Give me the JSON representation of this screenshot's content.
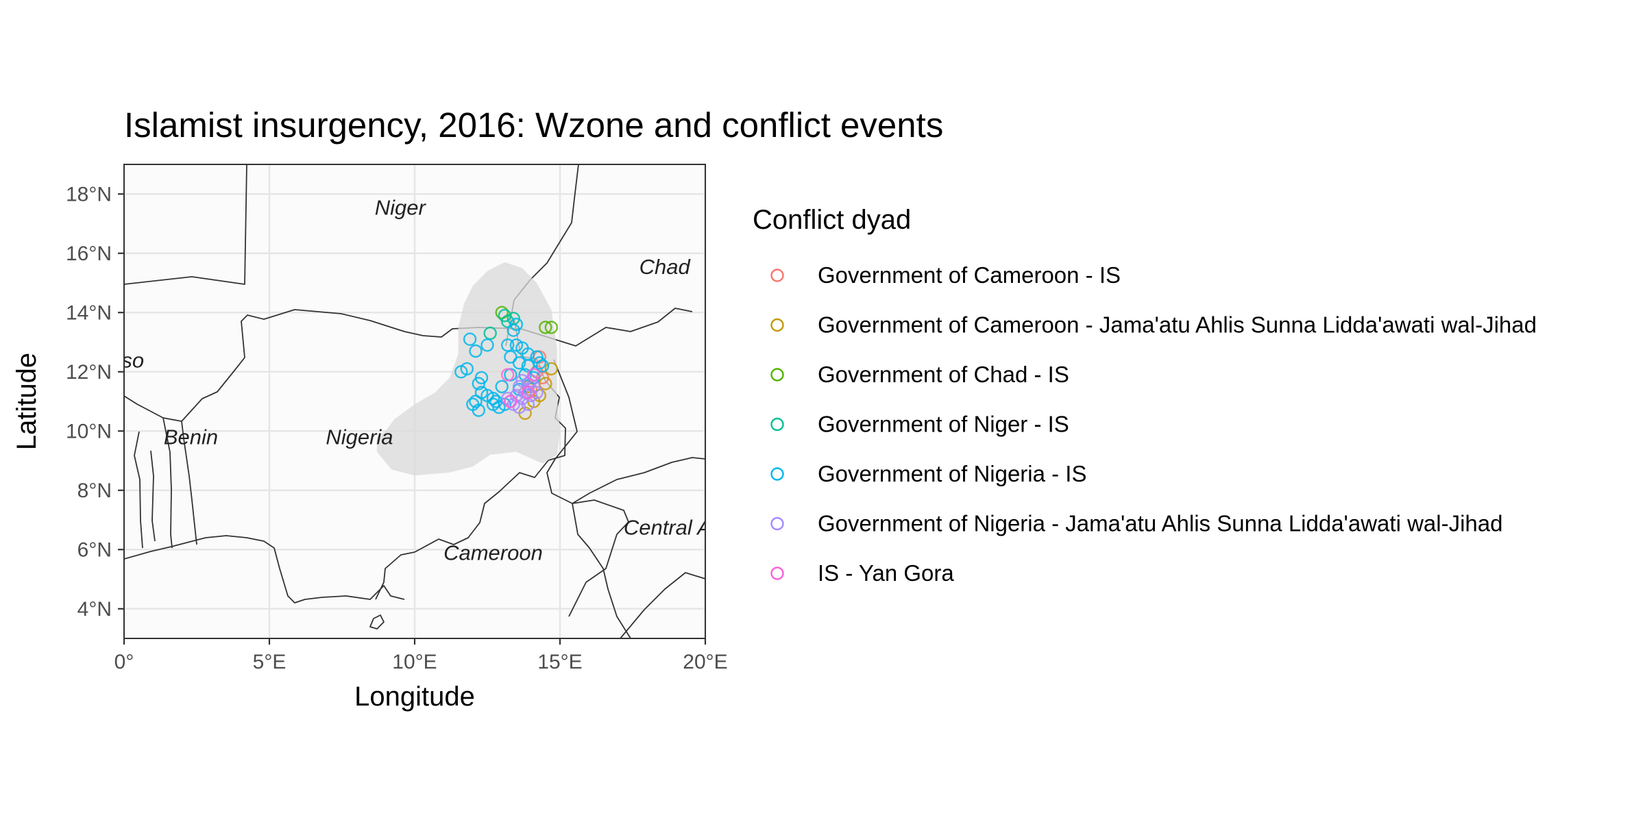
{
  "title": "Islamist insurgency, 2016: Wzone and conflict events",
  "xlabel": "Longitude",
  "ylabel": "Latitude",
  "x_ticks": [
    {
      "value": 0,
      "label": "0°"
    },
    {
      "value": 5,
      "label": "5°E"
    },
    {
      "value": 10,
      "label": "10°E"
    },
    {
      "value": 15,
      "label": "15°E"
    },
    {
      "value": 20,
      "label": "20°E"
    }
  ],
  "y_ticks": [
    {
      "value": 4,
      "label": "4°N"
    },
    {
      "value": 6,
      "label": "6°N"
    },
    {
      "value": 8,
      "label": "8°N"
    },
    {
      "value": 10,
      "label": "10°N"
    },
    {
      "value": 12,
      "label": "12°N"
    },
    {
      "value": 14,
      "label": "14°N"
    },
    {
      "value": 16,
      "label": "16°N"
    },
    {
      "value": 18,
      "label": "18°N"
    }
  ],
  "country_labels": [
    {
      "text": "Niger",
      "lon": 9.5,
      "lat": 17.3
    },
    {
      "text": "Chad",
      "lon": 18.6,
      "lat": 15.3
    },
    {
      "text": "so",
      "lon": 0.3,
      "lat": 12.15
    },
    {
      "text": "Benin",
      "lon": 2.3,
      "lat": 9.55
    },
    {
      "text": "Nigeria",
      "lon": 8.1,
      "lat": 9.55
    },
    {
      "text": "Cameroon",
      "lon": 12.7,
      "lat": 5.65
    },
    {
      "text": "Central A",
      "lon": 18.7,
      "lat": 6.5
    }
  ],
  "legend": {
    "title": "Conflict dyad",
    "items": [
      {
        "label": "Government of Cameroon - IS",
        "color": "#F8766D"
      },
      {
        "label": "Government of Cameroon - Jama'atu Ahlis Sunna Lidda'awati wal-Jihad",
        "color": "#C49A00"
      },
      {
        "label": "Government of Chad - IS",
        "color": "#53B400"
      },
      {
        "label": "Government of Niger - IS",
        "color": "#00C094"
      },
      {
        "label": "Government of Nigeria - IS",
        "color": "#00B6EB"
      },
      {
        "label": "Government of Nigeria - Jama'atu Ahlis Sunna Lidda'awati wal-Jihad",
        "color": "#A58AFF"
      },
      {
        "label": "IS - Yan Gora",
        "color": "#FB61D7"
      }
    ]
  },
  "chart_data": {
    "type": "scatter",
    "xlim": [
      0,
      20
    ],
    "ylim": [
      3,
      19
    ],
    "grid": true,
    "legend_position": "right",
    "wzone_polygon": [
      [
        9.0,
        10.0
      ],
      [
        9.3,
        10.4
      ],
      [
        10.0,
        10.9
      ],
      [
        10.7,
        11.3
      ],
      [
        11.2,
        11.8
      ],
      [
        11.5,
        12.6
      ],
      [
        11.5,
        13.5
      ],
      [
        11.7,
        14.3
      ],
      [
        12.0,
        14.9
      ],
      [
        12.5,
        15.4
      ],
      [
        13.1,
        15.7
      ],
      [
        13.7,
        15.5
      ],
      [
        14.2,
        15.0
      ],
      [
        14.7,
        14.1
      ],
      [
        14.9,
        12.8
      ],
      [
        14.9,
        11.2
      ],
      [
        15.0,
        10.0
      ],
      [
        14.9,
        9.2
      ],
      [
        14.4,
        8.9
      ],
      [
        13.5,
        9.3
      ],
      [
        12.6,
        9.2
      ],
      [
        12.0,
        8.8
      ],
      [
        11.2,
        8.6
      ],
      [
        10.0,
        8.5
      ],
      [
        9.2,
        8.7
      ],
      [
        8.7,
        9.3
      ],
      [
        8.7,
        9.8
      ],
      [
        9.0,
        10.0
      ]
    ],
    "series": [
      {
        "name": "Government of Cameroon - IS",
        "points": [
          [
            14.3,
            12.5
          ],
          [
            14.4,
            11.8
          ],
          [
            14.0,
            11.4
          ],
          [
            14.2,
            12.0
          ]
        ]
      },
      {
        "name": "Government of Cameroon - Jama'atu Ahlis Sunna Lidda'awati wal-Jihad",
        "points": [
          [
            14.7,
            12.1
          ],
          [
            13.8,
            10.6
          ],
          [
            14.1,
            11.0
          ],
          [
            14.3,
            11.2
          ],
          [
            13.9,
            11.5
          ],
          [
            14.5,
            11.6
          ]
        ]
      },
      {
        "name": "Government of Chad - IS",
        "points": [
          [
            14.5,
            13.5
          ],
          [
            14.7,
            13.5
          ],
          [
            13.0,
            14.0
          ]
        ]
      },
      {
        "name": "Government of Niger - IS",
        "points": [
          [
            12.6,
            13.3
          ],
          [
            13.2,
            13.7
          ],
          [
            13.4,
            13.8
          ],
          [
            13.1,
            13.9
          ]
        ]
      },
      {
        "name": "Government of Nigeria - IS",
        "points": [
          [
            11.6,
            12.0
          ],
          [
            11.8,
            12.1
          ],
          [
            11.9,
            13.1
          ],
          [
            12.1,
            12.7
          ],
          [
            12.5,
            12.9
          ],
          [
            12.2,
            11.6
          ],
          [
            12.3,
            11.3
          ],
          [
            12.1,
            11.0
          ],
          [
            12.2,
            10.7
          ],
          [
            12.7,
            11.1
          ],
          [
            12.9,
            10.8
          ],
          [
            13.0,
            11.5
          ],
          [
            13.2,
            12.9
          ],
          [
            13.3,
            12.5
          ],
          [
            13.4,
            13.4
          ],
          [
            13.5,
            13.6
          ],
          [
            13.6,
            12.3
          ],
          [
            13.7,
            12.8
          ],
          [
            13.8,
            11.9
          ],
          [
            13.9,
            12.2
          ],
          [
            14.1,
            11.8
          ],
          [
            14.3,
            12.3
          ],
          [
            14.4,
            12.2
          ],
          [
            12.0,
            10.9
          ],
          [
            12.5,
            11.2
          ],
          [
            12.8,
            11.0
          ],
          [
            13.1,
            10.9
          ],
          [
            13.6,
            11.4
          ],
          [
            13.5,
            12.9
          ],
          [
            13.9,
            12.6
          ],
          [
            12.3,
            11.8
          ],
          [
            13.3,
            11.9
          ],
          [
            14.2,
            12.5
          ],
          [
            12.7,
            10.9
          ]
        ]
      },
      {
        "name": "Government of Nigeria - Jama'atu Ahlis Sunna Lidda'awati wal-Jihad",
        "points": [
          [
            13.3,
            11.0
          ],
          [
            13.5,
            11.2
          ],
          [
            13.6,
            11.5
          ],
          [
            13.7,
            11.1
          ],
          [
            13.8,
            11.3
          ],
          [
            13.9,
            11.6
          ],
          [
            14.0,
            11.7
          ],
          [
            14.1,
            11.5
          ],
          [
            13.4,
            10.9
          ],
          [
            13.6,
            10.8
          ],
          [
            13.9,
            10.9
          ],
          [
            14.0,
            11.2
          ],
          [
            13.2,
            11.1
          ],
          [
            13.7,
            11.7
          ],
          [
            14.2,
            11.3
          ]
        ]
      },
      {
        "name": "IS - Yan Gora",
        "points": [
          [
            13.2,
            11.9
          ],
          [
            13.3,
            11.0
          ],
          [
            13.9,
            11.3
          ],
          [
            14.1,
            11.9
          ]
        ]
      }
    ]
  }
}
